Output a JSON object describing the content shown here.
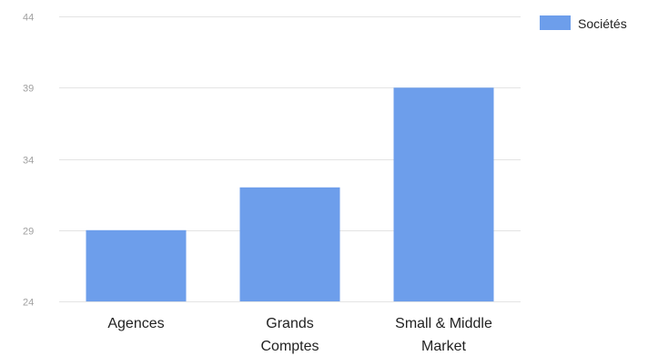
{
  "chart_data": {
    "type": "bar",
    "categories": [
      [
        "Agences"
      ],
      [
        "Grands",
        "Comptes"
      ],
      [
        "Small & Middle",
        "Market"
      ]
    ],
    "series": [
      {
        "name": "Sociétés",
        "values": [
          29,
          32,
          39
        ],
        "color": "#6d9eeb"
      }
    ],
    "ylim": [
      24,
      44
    ],
    "yticks": [
      24,
      29,
      34,
      39,
      44
    ],
    "grid": true,
    "legend_position": "top-right"
  }
}
